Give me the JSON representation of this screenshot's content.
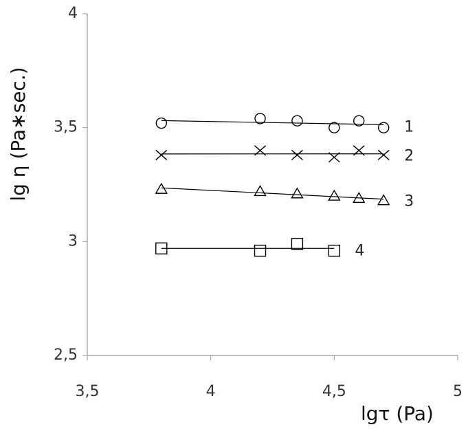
{
  "chart_data": {
    "type": "scatter",
    "x_label": "lgτ (Pa)",
    "y_label": "lg η (Pa∗sec.)",
    "xlim": [
      3.5,
      5
    ],
    "ylim": [
      2.5,
      4
    ],
    "xticks": [
      {
        "value": 3.5,
        "label": "3,5"
      },
      4,
      {
        "value": 4.5,
        "label": "4,5"
      },
      5
    ],
    "yticks": [
      {
        "value": 2.5,
        "label": "2,5"
      },
      3,
      {
        "value": 3.5,
        "label": "3,5"
      },
      4
    ],
    "grid": false,
    "trendline": true,
    "series": [
      {
        "name": "1",
        "color": "#000000",
        "marker": "circle",
        "x": [
          3.8,
          4.2,
          4.35,
          4.5,
          4.6,
          4.7
        ],
        "values": [
          3.52,
          3.54,
          3.53,
          3.5,
          3.53,
          3.5
        ]
      },
      {
        "name": "2",
        "color": "#000000",
        "marker": "x",
        "x": [
          3.8,
          4.2,
          4.35,
          4.5,
          4.6,
          4.7
        ],
        "values": [
          3.38,
          3.4,
          3.38,
          3.37,
          3.4,
          3.38
        ]
      },
      {
        "name": "3",
        "color": "#000000",
        "marker": "triangle",
        "x": [
          3.8,
          4.2,
          4.35,
          4.5,
          4.6,
          4.7
        ],
        "values": [
          3.23,
          3.22,
          3.21,
          3.2,
          3.19,
          3.18
        ]
      },
      {
        "name": "4",
        "color": "#000000",
        "marker": "square",
        "x": [
          3.8,
          4.2,
          4.35,
          4.5
        ],
        "values": [
          2.97,
          2.96,
          2.99,
          2.96
        ]
      }
    ]
  }
}
